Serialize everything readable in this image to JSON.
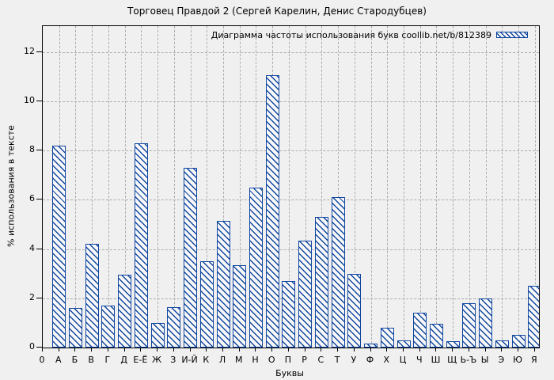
{
  "title": "Торговец Правдой 2 (Сергей Карелин, Денис Стародубцев)",
  "chart_data": {
    "type": "bar",
    "title": "Торговец Правдой 2 (Сергей Карелин, Денис Стародубцев)",
    "legend": "Диаграмма частоты использования букв coollib.net/b/812389",
    "legend_position": "top-right-inside",
    "xlabel": "Буквы",
    "ylabel": "% использования в тексте",
    "origin_label": "0",
    "categories": [
      "А",
      "Б",
      "В",
      "Г",
      "Д",
      "Е-Ё",
      "Ж",
      "З",
      "И-Й",
      "К",
      "Л",
      "М",
      "Н",
      "О",
      "П",
      "Р",
      "С",
      "Т",
      "У",
      "Ф",
      "Х",
      "Ц",
      "Ч",
      "Ш",
      "Щ",
      "Ь-Ъ",
      "Ы",
      "Э",
      "Ю",
      "Я"
    ],
    "values": [
      8.2,
      1.6,
      4.2,
      1.7,
      2.95,
      8.3,
      1.0,
      1.65,
      7.3,
      3.5,
      5.15,
      3.35,
      6.5,
      11.05,
      2.7,
      4.35,
      5.3,
      6.1,
      3.0,
      0.15,
      0.8,
      0.3,
      1.4,
      0.95,
      0.25,
      1.8,
      2.0,
      0.3,
      0.5,
      2.5
    ],
    "yticks": [
      0,
      2,
      4,
      6,
      8,
      10,
      12
    ],
    "ylim": [
      0,
      13.05
    ],
    "grid": true,
    "colors": {
      "bar_outline": "#1046a0",
      "bar_fill": "#f8f8f8",
      "background": "#f0f0f0",
      "grid": "#adadad",
      "frame": "#000000"
    }
  }
}
